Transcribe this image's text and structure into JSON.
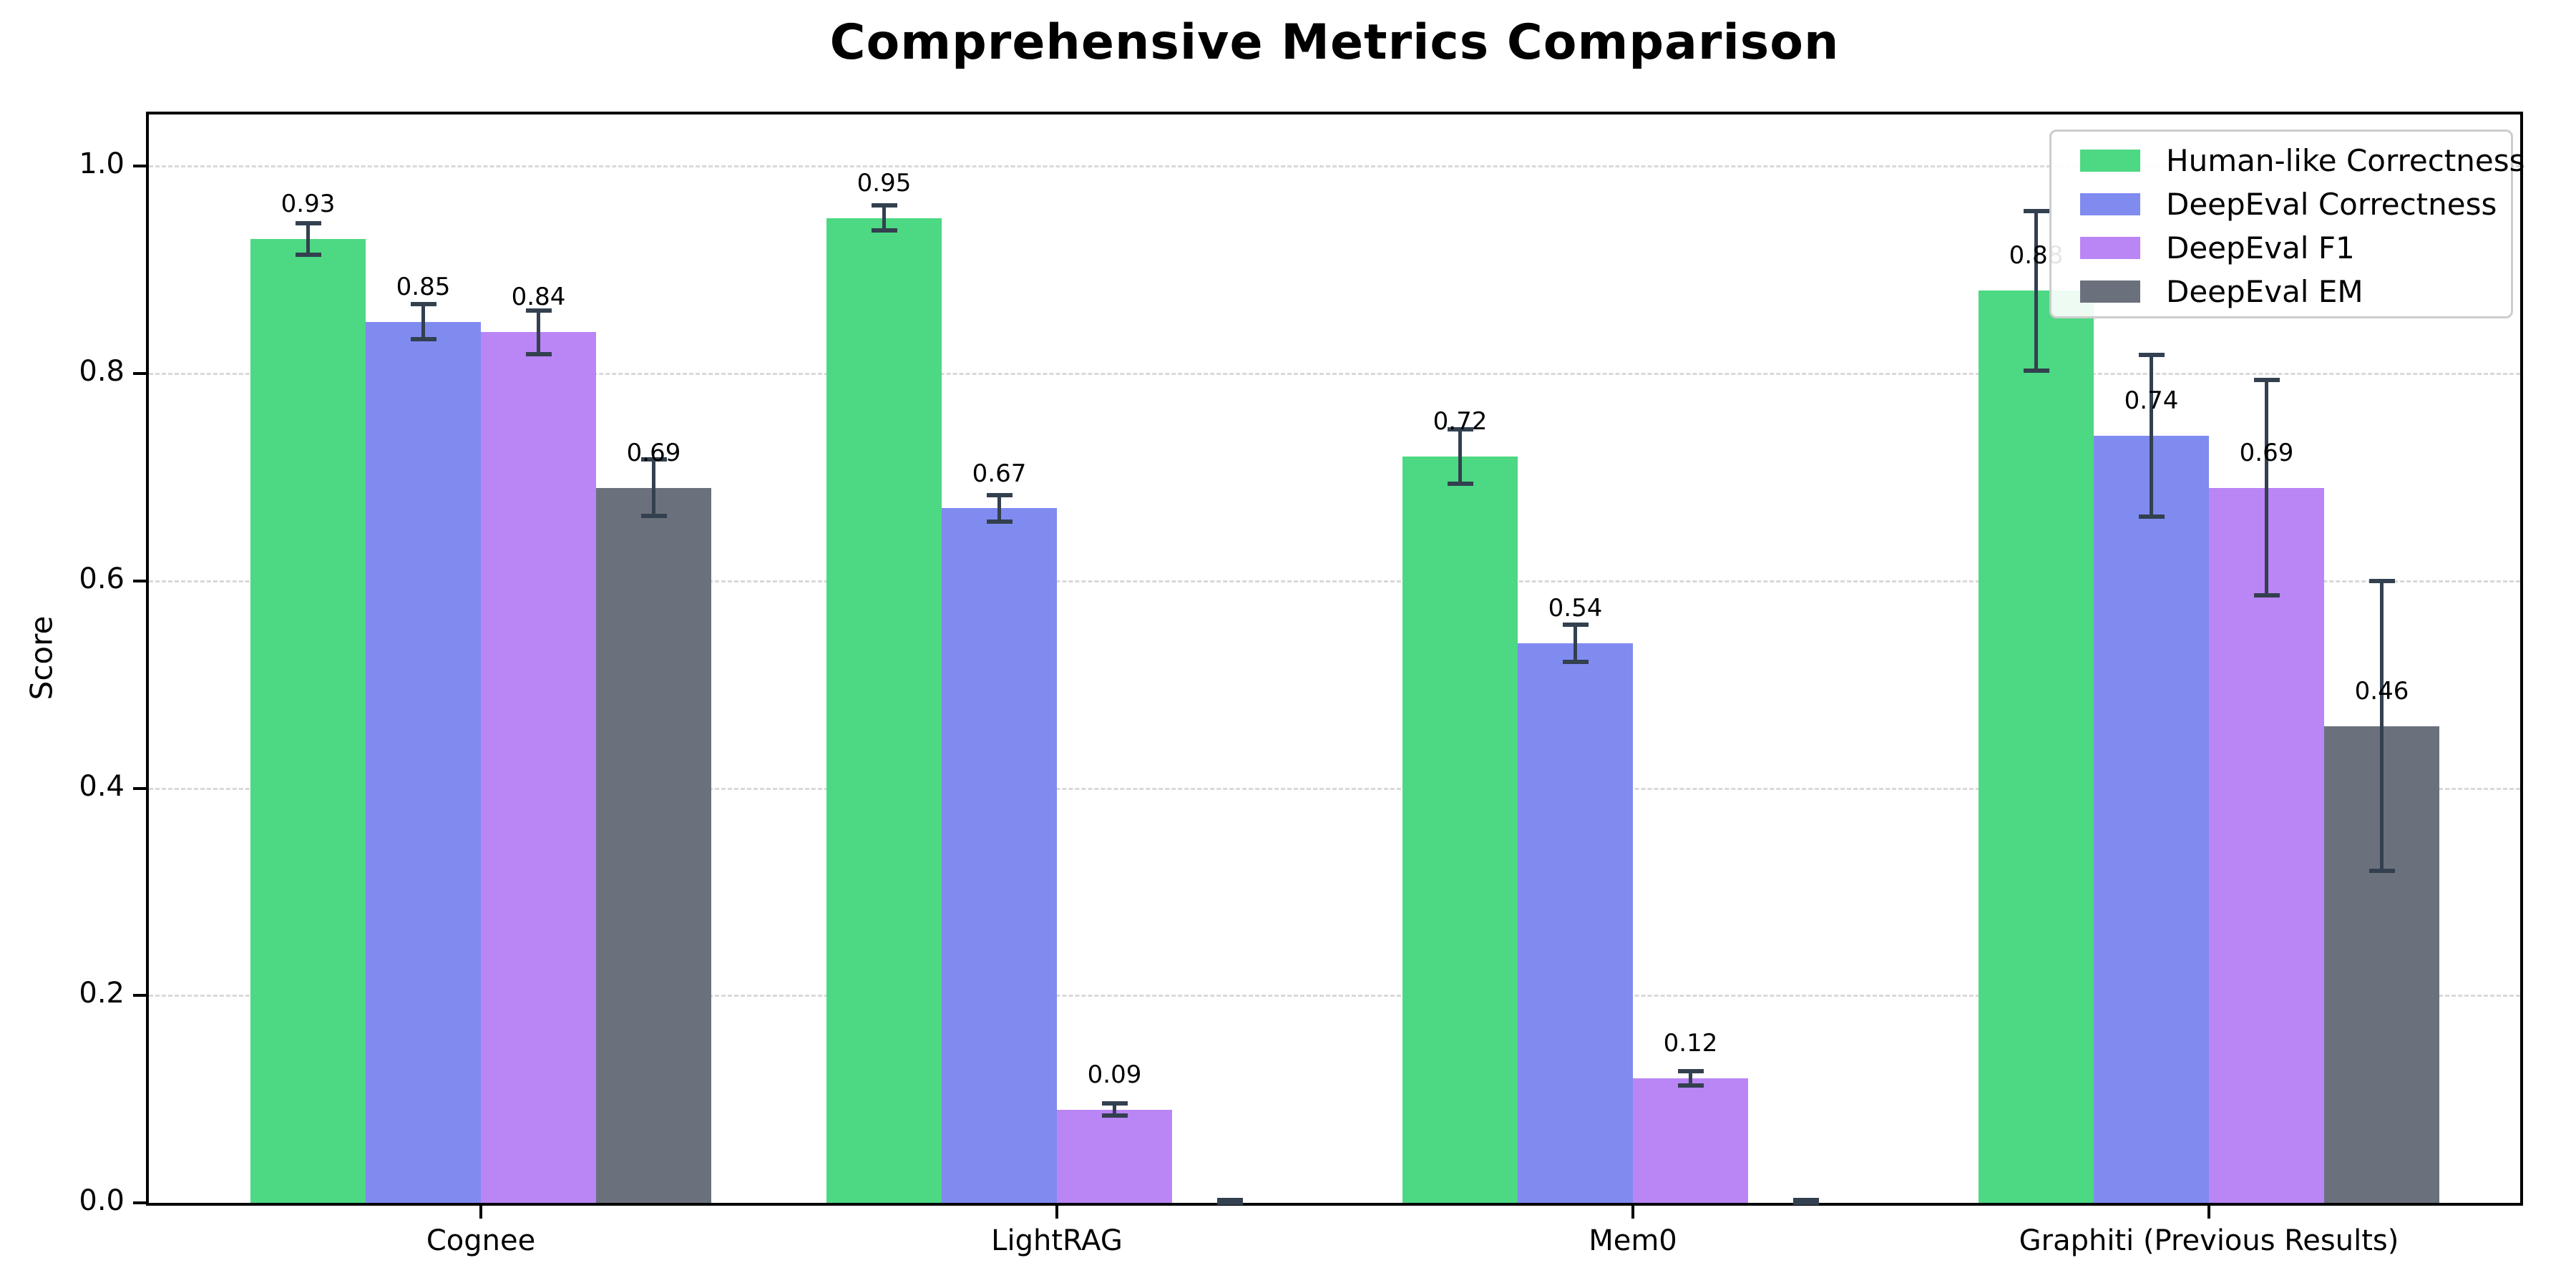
{
  "figure": {
    "title": "Comprehensive Metrics Comparison",
    "ylabel": "Score"
  },
  "chart_data": {
    "type": "bar",
    "title": "Comprehensive Metrics Comparison",
    "xlabel": "",
    "ylabel": "Score",
    "categories": [
      "Cognee",
      "LightRAG",
      "Mem0",
      "Graphiti (Previous Results)"
    ],
    "series": [
      {
        "name": "Human-like Correctness",
        "color": "#4dd883",
        "values": [
          0.93,
          0.95,
          0.72,
          0.88
        ],
        "errors": [
          0.015,
          0.012,
          0.026,
          0.077
        ],
        "labels": [
          "0.93",
          "0.95",
          "0.72",
          "0.88"
        ]
      },
      {
        "name": "DeepEval Correctness",
        "color": "#808bf0",
        "values": [
          0.85,
          0.67,
          0.54,
          0.74
        ],
        "errors": [
          0.017,
          0.013,
          0.018,
          0.078
        ],
        "labels": [
          "0.85",
          "0.67",
          "0.54",
          "0.74"
        ]
      },
      {
        "name": "DeepEval F1",
        "color": "#ba85f5",
        "values": [
          0.84,
          0.09,
          0.12,
          0.69
        ],
        "errors": [
          0.021,
          0.006,
          0.007,
          0.104
        ],
        "labels": [
          "0.84",
          "0.09",
          "0.12",
          "0.69"
        ]
      },
      {
        "name": "DeepEval EM",
        "color": "#6a717c",
        "values": [
          0.69,
          0.0,
          0.0,
          0.46
        ],
        "errors": [
          0.027,
          0.003,
          0.003,
          0.14
        ],
        "labels": [
          "0.69",
          "",
          "",
          "0.46"
        ]
      }
    ],
    "yticks": [
      0.0,
      0.2,
      0.4,
      0.6,
      0.8,
      1.0
    ],
    "ytick_labels": [
      "0.0",
      "0.2",
      "0.4",
      "0.6",
      "0.8",
      "1.0"
    ],
    "ylim": [
      0,
      1.05
    ],
    "grid": "horizontal-dashed",
    "legend_position": "upper right",
    "error_bar_color": "#33404f"
  }
}
